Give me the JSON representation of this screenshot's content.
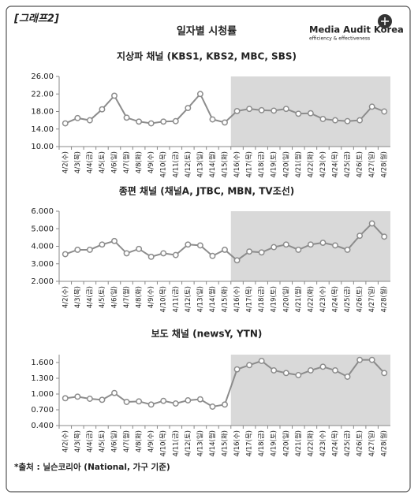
{
  "header": {
    "tag": "[그래프2]",
    "title": "일자별 시청률",
    "logo": "Media Audit Korea",
    "logo_tagline": "efficiency & effectiveness"
  },
  "footer": "*출처 : 닐슨코리아 (National, 가구 기준)",
  "chart_data": [
    {
      "type": "line",
      "title": "지상파 채널 (KBS1, KBS2, MBC, SBS)",
      "color": "#8c8c8c",
      "highlight_start": "4/16(수)",
      "categories": [
        "4/2(수)",
        "4/3(목)",
        "4/4(금)",
        "4/5(토)",
        "4/6(일)",
        "4/7(월)",
        "4/8(화)",
        "4/9(수)",
        "4/10(목)",
        "4/11(금)",
        "4/12(토)",
        "4/13(일)",
        "4/14(월)",
        "4/15(화)",
        "4/16(수)",
        "4/17(목)",
        "4/18(금)",
        "4/19(토)",
        "4/20(일)",
        "4/21(월)",
        "4/22(화)",
        "4/23(수)",
        "4/24(목)",
        "4/25(금)",
        "4/26(토)",
        "4/27(일)",
        "4/28(월)"
      ],
      "values": [
        15.3,
        16.5,
        16.0,
        18.5,
        21.6,
        16.6,
        15.7,
        15.3,
        15.7,
        15.8,
        18.8,
        22.0,
        16.2,
        15.5,
        18.1,
        18.6,
        18.3,
        18.2,
        18.6,
        17.5,
        17.6,
        16.3,
        16.0,
        15.8,
        16.0,
        19.1,
        18.0
      ],
      "ylim": [
        10,
        26
      ],
      "yticks": [
        {
          "value": 10,
          "label": "10.00"
        },
        {
          "value": 14,
          "label": "14.00"
        },
        {
          "value": 18,
          "label": "18.00"
        },
        {
          "value": 22,
          "label": "22.00"
        },
        {
          "value": 26,
          "label": "26.00"
        }
      ]
    },
    {
      "type": "line",
      "title": "종편 채널 (채널A, JTBC, MBN, TV조선)",
      "color": "#8c8c8c",
      "highlight_start": "4/16(수)",
      "categories": [
        "4/2(수)",
        "4/3(목)",
        "4/4(금)",
        "4/5(토)",
        "4/6(일)",
        "4/7(월)",
        "4/8(화)",
        "4/9(수)",
        "4/10(목)",
        "4/11(금)",
        "4/12(토)",
        "4/13(일)",
        "4/14(월)",
        "4/15(화)",
        "4/16(수)",
        "4/17(목)",
        "4/18(금)",
        "4/19(토)",
        "4/20(일)",
        "4/21(월)",
        "4/22(화)",
        "4/23(수)",
        "4/24(목)",
        "4/25(금)",
        "4/26(토)",
        "4/27(일)",
        "4/28(월)"
      ],
      "values": [
        3.55,
        3.8,
        3.8,
        4.1,
        4.3,
        3.6,
        3.85,
        3.4,
        3.6,
        3.5,
        4.1,
        4.05,
        3.45,
        3.8,
        3.2,
        3.7,
        3.65,
        3.95,
        4.1,
        3.8,
        4.1,
        4.2,
        4.05,
        3.8,
        4.6,
        5.3,
        4.55
      ],
      "ylim": [
        2,
        6
      ],
      "yticks": [
        {
          "value": 2,
          "label": "2.000"
        },
        {
          "value": 3,
          "label": "3.000"
        },
        {
          "value": 4,
          "label": "4.000"
        },
        {
          "value": 5,
          "label": "5.000"
        },
        {
          "value": 6,
          "label": "6.000"
        }
      ]
    },
    {
      "type": "line",
      "title": "보도 채널 (newsY, YTN)",
      "color": "#8c8c8c",
      "highlight_start": "4/16(수)",
      "categories": [
        "4/2(수)",
        "4/3(목)",
        "4/4(금)",
        "4/5(토)",
        "4/6(일)",
        "4/7(월)",
        "4/8(화)",
        "4/9(수)",
        "4/10(목)",
        "4/11(금)",
        "4/12(토)",
        "4/13(일)",
        "4/14(월)",
        "4/15(화)",
        "4/16(수)",
        "4/17(목)",
        "4/18(금)",
        "4/19(토)",
        "4/20(일)",
        "4/21(월)",
        "4/22(화)",
        "4/23(수)",
        "4/24(목)",
        "4/25(금)",
        "4/26(토)",
        "4/27(일)",
        "4/28(월)"
      ],
      "values": [
        0.92,
        0.95,
        0.91,
        0.89,
        1.02,
        0.85,
        0.86,
        0.8,
        0.87,
        0.82,
        0.88,
        0.9,
        0.76,
        0.8,
        1.47,
        1.55,
        1.63,
        1.45,
        1.4,
        1.36,
        1.45,
        1.52,
        1.45,
        1.33,
        1.65,
        1.65,
        1.4
      ],
      "ylim": [
        0.4,
        1.75
      ],
      "yticks": [
        {
          "value": 0.4,
          "label": "0.400"
        },
        {
          "value": 0.7,
          "label": "0.700"
        },
        {
          "value": 1.0,
          "label": "1.000"
        },
        {
          "value": 1.3,
          "label": "1.300"
        },
        {
          "value": 1.6,
          "label": "1.600"
        }
      ]
    }
  ]
}
